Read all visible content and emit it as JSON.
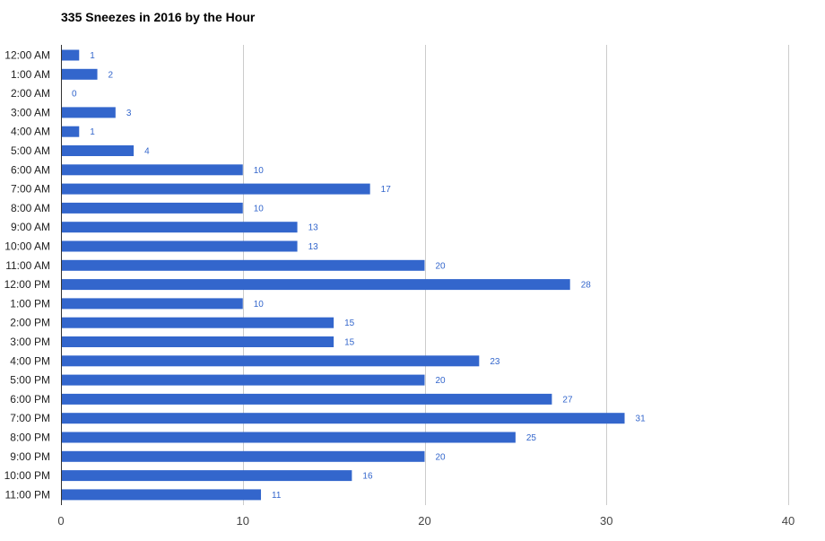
{
  "chart_data": {
    "type": "bar",
    "orientation": "horizontal",
    "title": "335 Sneezes in 2016 by the Hour",
    "xlabel": "",
    "ylabel": "",
    "xlim": [
      0,
      40
    ],
    "xticks": [
      0,
      10,
      20,
      30,
      40
    ],
    "grid": true,
    "legend": "none",
    "bar_color": "#3366cc",
    "categories": [
      "12:00 AM",
      "1:00 AM",
      "2:00 AM",
      "3:00 AM",
      "4:00 AM",
      "5:00 AM",
      "6:00 AM",
      "7:00 AM",
      "8:00 AM",
      "9:00 AM",
      "10:00 AM",
      "11:00 AM",
      "12:00 PM",
      "1:00 PM",
      "2:00 PM",
      "3:00 PM",
      "4:00 PM",
      "5:00 PM",
      "6:00 PM",
      "7:00 PM",
      "8:00 PM",
      "9:00 PM",
      "10:00 PM",
      "11:00 PM"
    ],
    "values": [
      1,
      2,
      0,
      3,
      1,
      4,
      10,
      17,
      10,
      13,
      13,
      20,
      28,
      10,
      15,
      15,
      23,
      20,
      27,
      31,
      25,
      20,
      16,
      11
    ]
  }
}
